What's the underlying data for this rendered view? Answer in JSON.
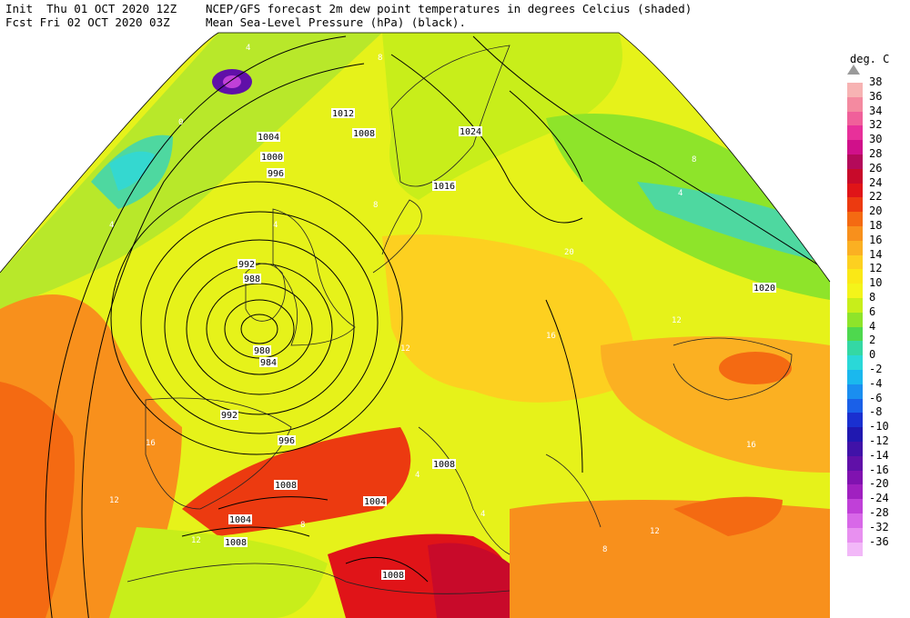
{
  "header": {
    "init_line": "Init  Thu 01 OCT 2020 12Z",
    "fcst_line": "Fcst Fri 02 OCT 2020 03Z",
    "title_line1": "NCEP/GFS forecast 2m dew point temperatures in degrees Celcius (shaded)",
    "title_line2": "Mean Sea-Level Pressure (hPa) (black)."
  },
  "legend": {
    "unit": "deg. C",
    "labels": [
      "38",
      "36",
      "34",
      "32",
      "30",
      "28",
      "26",
      "24",
      "22",
      "20",
      "18",
      "16",
      "14",
      "12",
      "10",
      "8",
      "6",
      "4",
      "2",
      "0",
      "-2",
      "-4",
      "-6",
      "-8",
      "-10",
      "-12",
      "-14",
      "-16",
      "-20",
      "-24",
      "-28",
      "-32",
      "-36"
    ],
    "colors": [
      "#f7b3b3",
      "#f48aa0",
      "#f0609a",
      "#e8309a",
      "#d0108a",
      "#b40a5a",
      "#c80a2a",
      "#e01418",
      "#ec3a10",
      "#f46a12",
      "#f8901c",
      "#fbb022",
      "#fdd020",
      "#fae816",
      "#f4f41a",
      "#c8ee1a",
      "#8ee42a",
      "#4ed84e",
      "#34d8a4",
      "#2ad8d8",
      "#1ab8ee",
      "#1a8ef0",
      "#1a60e8",
      "#1a30d0",
      "#2018b0",
      "#4012a8",
      "#6010a8",
      "#8012b0",
      "#a020c0",
      "#c040d8",
      "#d868e8",
      "#e890f0",
      "#f2b8f8"
    ]
  },
  "map": {
    "isobar_labels": [
      "1012",
      "1008",
      "1004",
      "1000",
      "996",
      "992",
      "988",
      "980",
      "984",
      "992",
      "996",
      "1008",
      "1004",
      "1008",
      "1008",
      "1024",
      "1016",
      "1020",
      "1008",
      "1004"
    ],
    "contour_labels": [
      "8",
      "4",
      "0",
      "4",
      "4",
      "8",
      "12",
      "16",
      "12",
      "12",
      "8",
      "4",
      "4",
      "8",
      "12",
      "16",
      "20",
      "16",
      "12",
      "8",
      "4"
    ]
  }
}
